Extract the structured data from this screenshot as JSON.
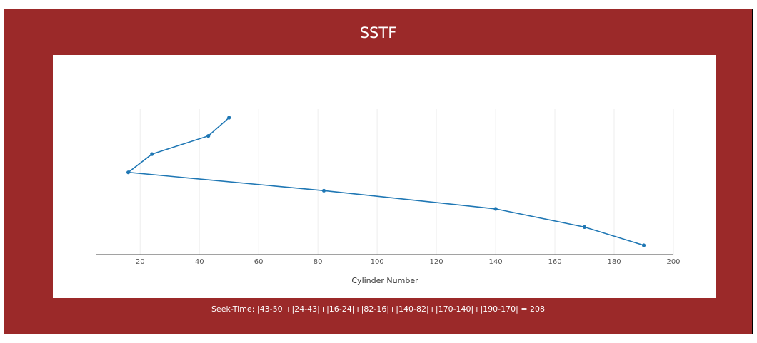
{
  "title": "SSTF",
  "footer": "Seek-Time: |43-50|+|24-43|+|16-24|+|82-16|+|140-82|+|170-140|+|190-170| = 208",
  "colors": {
    "background": "#9b2929",
    "line": "#1f77b4",
    "grid": "#eeeeee"
  },
  "chart_data": {
    "type": "line",
    "title": "SSTF",
    "xlabel": "Cylinder Number",
    "ylabel": "",
    "xlim": [
      5,
      200
    ],
    "xticks": [
      20,
      40,
      60,
      80,
      100,
      120,
      140,
      160,
      180,
      200
    ],
    "grid": true,
    "legend": "none",
    "x": [
      50,
      43,
      24,
      16,
      82,
      140,
      170,
      190
    ],
    "y": [
      0,
      1,
      2,
      3,
      4,
      5,
      6,
      7
    ]
  }
}
